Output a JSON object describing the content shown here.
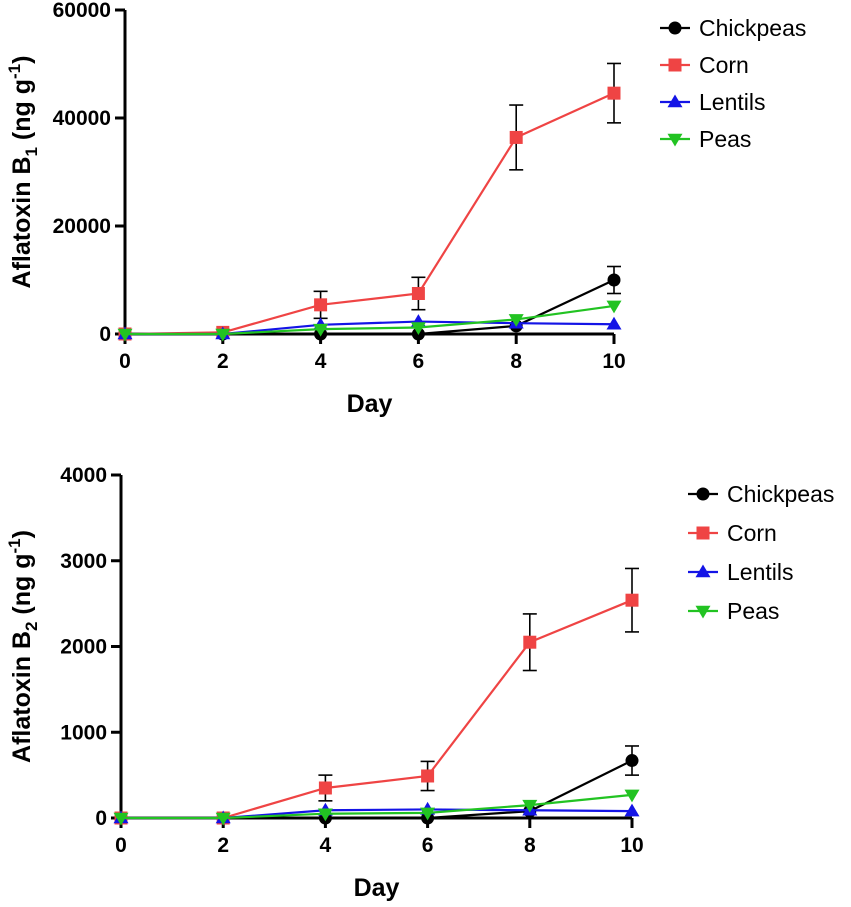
{
  "chart_data": [
    {
      "type": "line",
      "title": "",
      "xlabel": "Day",
      "ylabel_parts": [
        "Aflatoxin B",
        "1",
        " (ng g",
        "-1",
        ")"
      ],
      "xlim": [
        0,
        10
      ],
      "ylim": [
        0,
        60000
      ],
      "xticks": [
        0,
        2,
        4,
        6,
        8,
        10
      ],
      "yticks": [
        0,
        20000,
        40000,
        60000
      ],
      "legend_position": "top-right",
      "series": [
        {
          "name": "Chickpeas",
          "color": "#000000",
          "marker": "circle",
          "x": [
            0,
            2,
            4,
            6,
            8,
            10
          ],
          "y": [
            0,
            0,
            0,
            0,
            1500,
            10000
          ],
          "err": [
            0,
            0,
            0,
            0,
            0,
            2500
          ]
        },
        {
          "name": "Corn",
          "color": "#ef4444",
          "marker": "square",
          "x": [
            0,
            2,
            4,
            6,
            8,
            10
          ],
          "y": [
            0,
            300,
            5400,
            7500,
            36400,
            44600
          ],
          "err": [
            0,
            0,
            2500,
            3000,
            6000,
            5500
          ]
        },
        {
          "name": "Lentils",
          "color": "#1414e6",
          "marker": "triangle-up",
          "x": [
            0,
            2,
            4,
            6,
            8,
            10
          ],
          "y": [
            0,
            0,
            1700,
            2300,
            2000,
            1800
          ],
          "err": [
            0,
            0,
            0,
            0,
            0,
            0
          ]
        },
        {
          "name": "Peas",
          "color": "#22c322",
          "marker": "triangle-down",
          "x": [
            0,
            2,
            4,
            6,
            8,
            10
          ],
          "y": [
            0,
            0,
            900,
            1200,
            2700,
            5200
          ],
          "err": [
            0,
            0,
            0,
            0,
            0,
            0
          ]
        }
      ]
    },
    {
      "type": "line",
      "title": "",
      "xlabel": "Day",
      "ylabel_parts": [
        "Aflatoxin B",
        "2",
        " (ng g",
        "-1",
        ")"
      ],
      "xlim": [
        0,
        10
      ],
      "ylim": [
        0,
        4000
      ],
      "xticks": [
        0,
        2,
        4,
        6,
        8,
        10
      ],
      "yticks": [
        0,
        1000,
        2000,
        3000,
        4000
      ],
      "legend_position": "top-right",
      "series": [
        {
          "name": "Chickpeas",
          "color": "#000000",
          "marker": "circle",
          "x": [
            0,
            2,
            4,
            6,
            8,
            10
          ],
          "y": [
            0,
            0,
            0,
            0,
            80,
            670
          ],
          "err": [
            0,
            0,
            0,
            0,
            0,
            170
          ]
        },
        {
          "name": "Corn",
          "color": "#ef4444",
          "marker": "square",
          "x": [
            0,
            2,
            4,
            6,
            8,
            10
          ],
          "y": [
            0,
            0,
            350,
            490,
            2050,
            2540
          ],
          "err": [
            0,
            0,
            150,
            170,
            330,
            370
          ]
        },
        {
          "name": "Lentils",
          "color": "#1414e6",
          "marker": "triangle-up",
          "x": [
            0,
            2,
            4,
            6,
            8,
            10
          ],
          "y": [
            0,
            0,
            90,
            100,
            90,
            80
          ],
          "err": [
            0,
            0,
            0,
            0,
            0,
            0
          ]
        },
        {
          "name": "Peas",
          "color": "#22c322",
          "marker": "triangle-down",
          "x": [
            0,
            2,
            4,
            6,
            8,
            10
          ],
          "y": [
            0,
            0,
            50,
            60,
            150,
            270
          ],
          "err": [
            0,
            0,
            0,
            0,
            0,
            0
          ]
        }
      ]
    }
  ]
}
